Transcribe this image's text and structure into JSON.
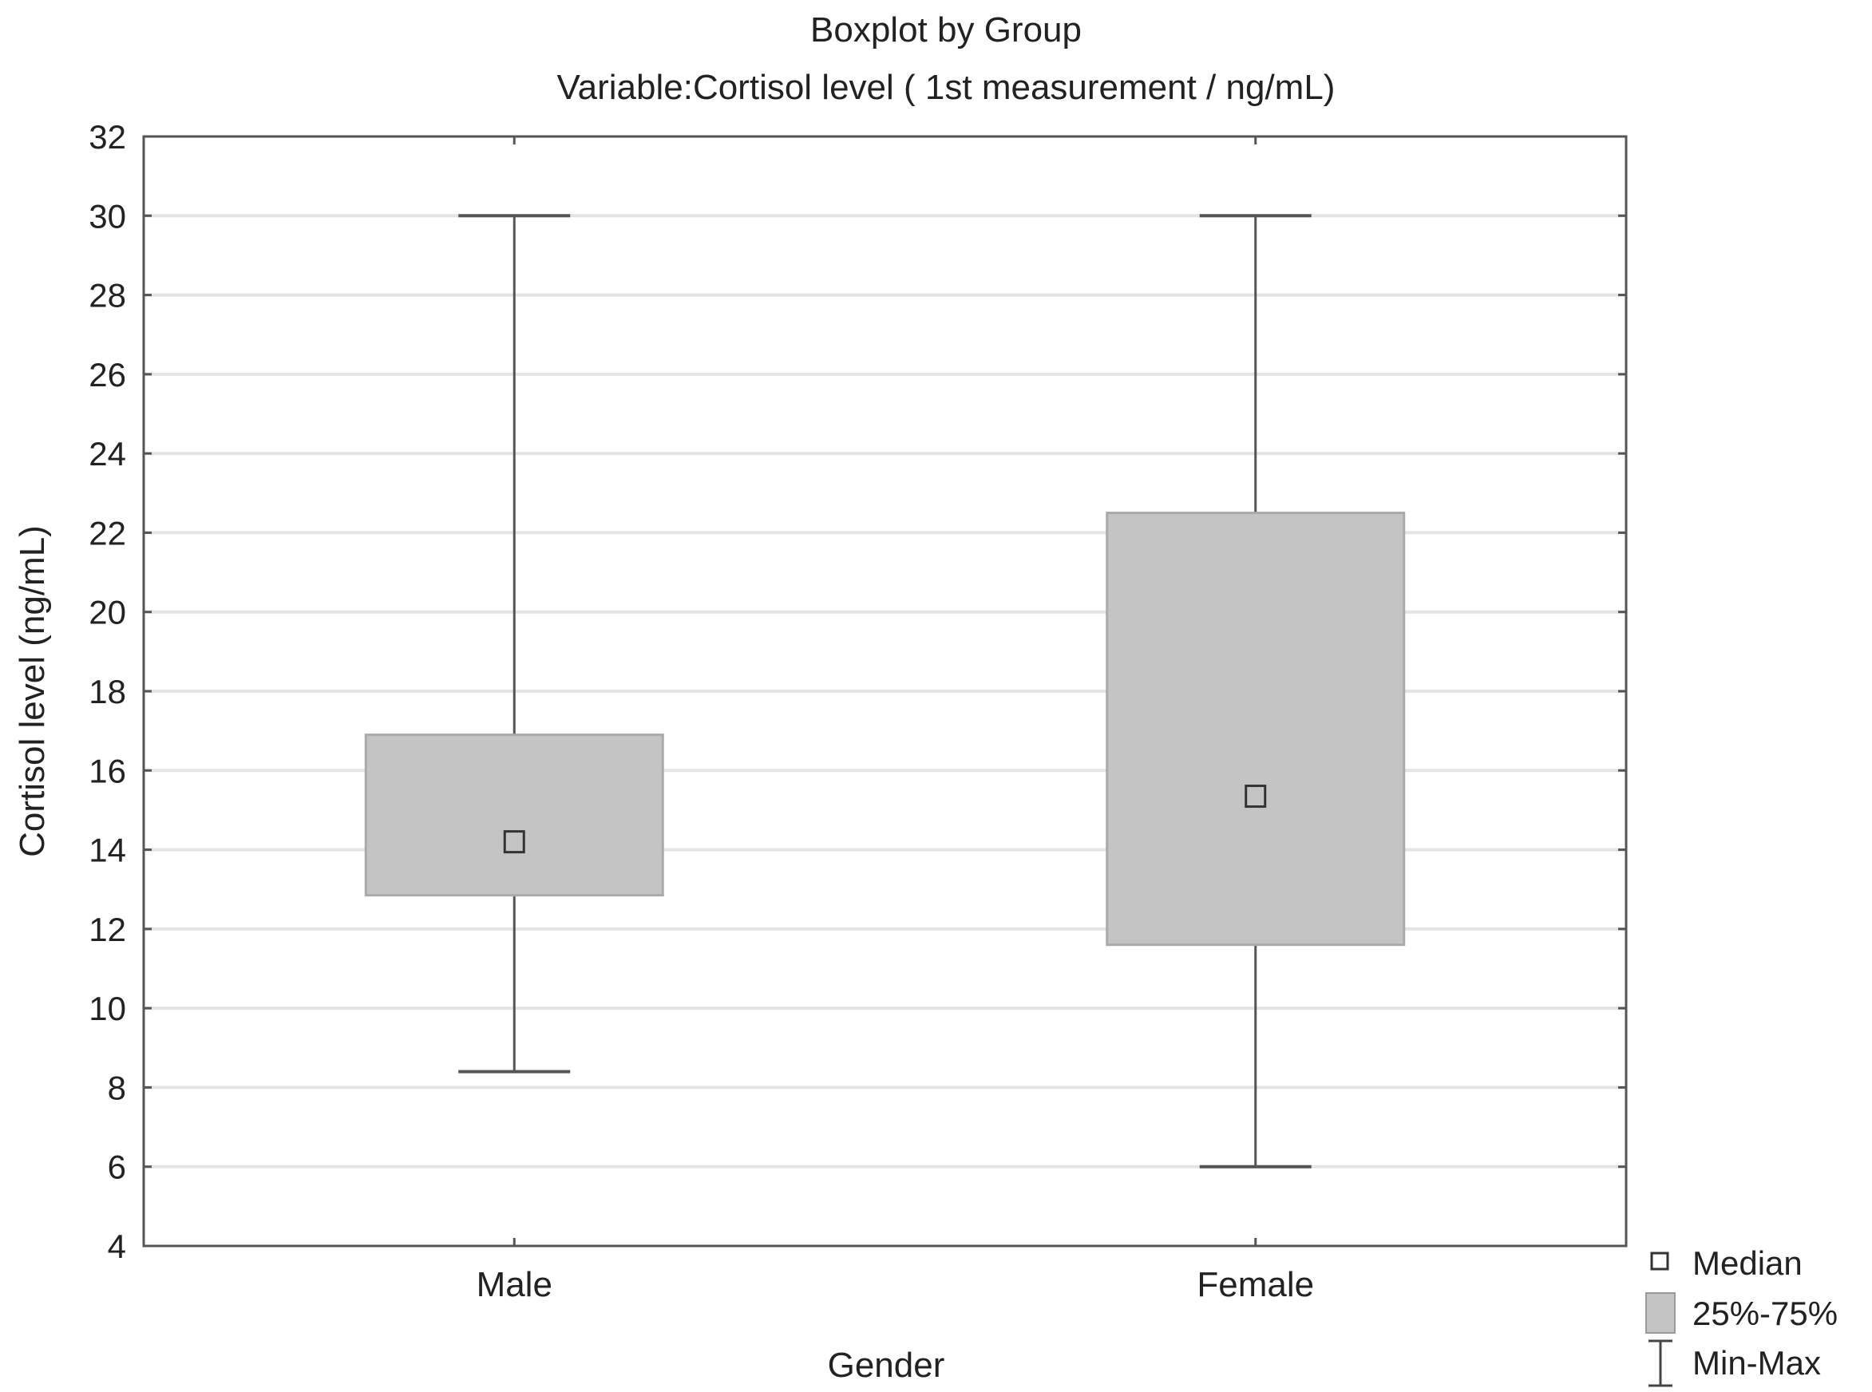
{
  "chart_data": {
    "type": "boxplot",
    "title": "Boxplot by Group",
    "subtitle": "Variable:Cortisol level ( 1st measurement / ng/mL)",
    "xlabel": "Gender",
    "ylabel": "Cortisol level (ng/mL)",
    "ylim": [
      4,
      32
    ],
    "yticks": [
      4,
      6,
      8,
      10,
      12,
      14,
      16,
      18,
      20,
      22,
      24,
      26,
      28,
      30,
      32
    ],
    "grid": true,
    "categories": [
      "Male",
      "Female"
    ],
    "groups": [
      {
        "name": "Male",
        "min": 8.4,
        "q1": 12.85,
        "median": 14.2,
        "q3": 16.9,
        "max": 30
      },
      {
        "name": "Female",
        "min": 6,
        "q1": 11.6,
        "median": 15.35,
        "q3": 22.5,
        "max": 30
      }
    ],
    "legend": {
      "placement": "bottom-right",
      "entries": [
        "Median",
        "25%-75%",
        "Min-Max"
      ]
    },
    "colors": {
      "box": "#c4c4c4",
      "line": "#555555",
      "grid": "#e4e4e4"
    }
  }
}
